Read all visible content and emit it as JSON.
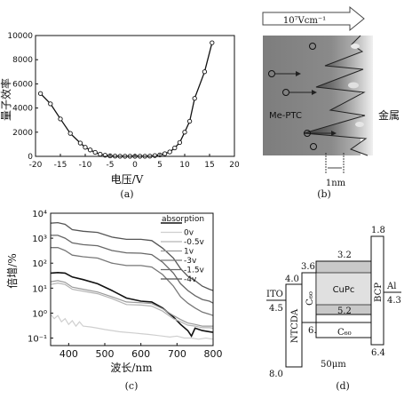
{
  "panel_a": {
    "caption": "(a)",
    "ylabel": "量子效率",
    "xlabel": "电压/V",
    "xticks": [
      "-20",
      "-15",
      "-10",
      "-5",
      "0",
      "5",
      "10",
      "15",
      "20"
    ],
    "yticks": [
      "0",
      "2000",
      "4000",
      "6000",
      "8000",
      "10000"
    ]
  },
  "panel_b": {
    "caption": "(b)",
    "field_label": "10⁷Vcm⁻¹",
    "organic_label": "Me-PTC",
    "metal_label": "金属",
    "scale_label": "1nm"
  },
  "panel_c": {
    "caption": "(c)",
    "ylabel": "倍增/%",
    "xlabel": "波长/nm",
    "xticks": [
      "400",
      "500",
      "600",
      "700",
      "800"
    ],
    "yticks": [
      "10⁻¹",
      "10⁰",
      "10¹",
      "10²",
      "10³",
      "10⁴"
    ],
    "legend": [
      "absorption",
      "0v",
      "-0.5v",
      "1v",
      "-3v",
      "-1.5v",
      "-4v"
    ]
  },
  "panel_d": {
    "caption": "(d)",
    "layers": {
      "ito": "ITO",
      "ntcda": "NTCDA",
      "c60_left": "C₆₀",
      "cupc": "CuPc",
      "c60_bottom": "C₆₀",
      "bcp": "BCP",
      "al": "Al"
    },
    "levels": {
      "ito": "4.5",
      "ntcda_top": "4.0",
      "ntcda_bottom": "8.0",
      "c60_top": "3.6",
      "c60_bottom": "6.2",
      "cupc_top": "3.2",
      "cupc_bottom": "5.2",
      "bcp_top": "1.8",
      "bcp_bottom": "6.4",
      "al": "4.3"
    },
    "thickness_label": "50μm"
  },
  "chart_data": [
    {
      "type": "line",
      "title": "",
      "xlabel": "电压/V",
      "ylabel": "量子效率",
      "xlim": [
        -20,
        20
      ],
      "ylim": [
        0,
        10000
      ],
      "x": [
        -19,
        -17,
        -15,
        -13,
        -11,
        -10,
        -9,
        -8,
        -7,
        -6,
        -5,
        -4,
        -3,
        -2,
        -1,
        0,
        1,
        2,
        3,
        4,
        5,
        6,
        7,
        8,
        9,
        10,
        11,
        12,
        14,
        15.5
      ],
      "y": [
        5200,
        4350,
        3100,
        1900,
        1100,
        750,
        530,
        330,
        180,
        90,
        40,
        20,
        10,
        5,
        5,
        5,
        5,
        10,
        20,
        60,
        120,
        220,
        370,
        700,
        1150,
        2000,
        2900,
        4800,
        7000,
        9400
      ]
    },
    {
      "type": "line",
      "title": "",
      "xlabel": "波长/nm",
      "ylabel": "倍增/%",
      "xlim": [
        350,
        800
      ],
      "ylim": [
        0.05,
        10000
      ],
      "yscale": "log",
      "series": [
        {
          "name": "-4v",
          "x": [
            350,
            370,
            390,
            410,
            440,
            480,
            520,
            560,
            600,
            630,
            660,
            690,
            710,
            730,
            750,
            770,
            790,
            800
          ],
          "y": [
            4000,
            4200,
            3600,
            2200,
            1900,
            1700,
            1100,
            900,
            900,
            800,
            400,
            160,
            60,
            30,
            20,
            12,
            9,
            8
          ]
        },
        {
          "name": "-1.5v",
          "x": [
            350,
            370,
            390,
            410,
            440,
            480,
            520,
            560,
            600,
            630,
            660,
            690,
            710,
            730,
            750,
            770,
            790,
            800
          ],
          "y": [
            1300,
            1300,
            1000,
            650,
            550,
            500,
            320,
            260,
            250,
            220,
            110,
            40,
            15,
            8,
            5,
            3.5,
            3,
            2.5
          ]
        },
        {
          "name": "-3v",
          "x": [
            350,
            370,
            390,
            410,
            440,
            480,
            520,
            560,
            600,
            630,
            660,
            690,
            710,
            730,
            750,
            770,
            790,
            800
          ],
          "y": [
            420,
            420,
            320,
            210,
            180,
            160,
            100,
            80,
            80,
            70,
            35,
            12,
            4.5,
            2.5,
            1.6,
            1.1,
            0.9,
            0.8
          ]
        },
        {
          "name": "absorption",
          "x": [
            350,
            370,
            390,
            410,
            440,
            480,
            520,
            560,
            600,
            630,
            660,
            690,
            710,
            730,
            740,
            750,
            770,
            790,
            800
          ],
          "y": [
            40,
            42,
            40,
            28,
            22,
            15,
            8,
            4,
            3,
            2.8,
            1.6,
            0.7,
            0.35,
            0.2,
            0.12,
            0.25,
            0.2,
            0.18,
            0.17
          ]
        },
        {
          "name": "1v",
          "x": [
            350,
            370,
            390,
            410,
            440,
            480,
            520,
            560,
            600,
            630,
            660,
            690,
            710,
            730,
            750,
            770,
            790,
            800
          ],
          "y": [
            18,
            20,
            17,
            11,
            9,
            7,
            4.5,
            2.8,
            2.6,
            2.4,
            1.5,
            0.8,
            0.55,
            0.4,
            0.35,
            0.3,
            0.3,
            0.3
          ]
        },
        {
          "name": "-0.5v",
          "x": [
            350,
            370,
            390,
            410,
            440,
            480,
            520,
            560,
            600,
            630,
            660,
            690,
            710,
            730,
            750,
            770,
            790,
            800
          ],
          "y": [
            14,
            16,
            14,
            9,
            7.5,
            6,
            3.8,
            2.2,
            2.1,
            1.9,
            1.2,
            0.6,
            0.45,
            0.33,
            0.3,
            0.26,
            0.26,
            0.25
          ]
        },
        {
          "name": "0v",
          "x": [
            350,
            360,
            370,
            380,
            390,
            400,
            410,
            420,
            430,
            440,
            460,
            480,
            500,
            520,
            540,
            560,
            580,
            600,
            620,
            640,
            660,
            680,
            700,
            720,
            740,
            760,
            780,
            800
          ],
          "y": [
            0.9,
            0.6,
            0.8,
            0.45,
            0.6,
            0.35,
            0.5,
            0.3,
            0.45,
            0.3,
            0.28,
            0.25,
            0.22,
            0.2,
            0.18,
            0.17,
            0.16,
            0.15,
            0.14,
            0.13,
            0.12,
            0.11,
            0.12,
            0.1,
            0.1,
            0.09,
            0.1,
            0.09
          ]
        }
      ]
    }
  ]
}
